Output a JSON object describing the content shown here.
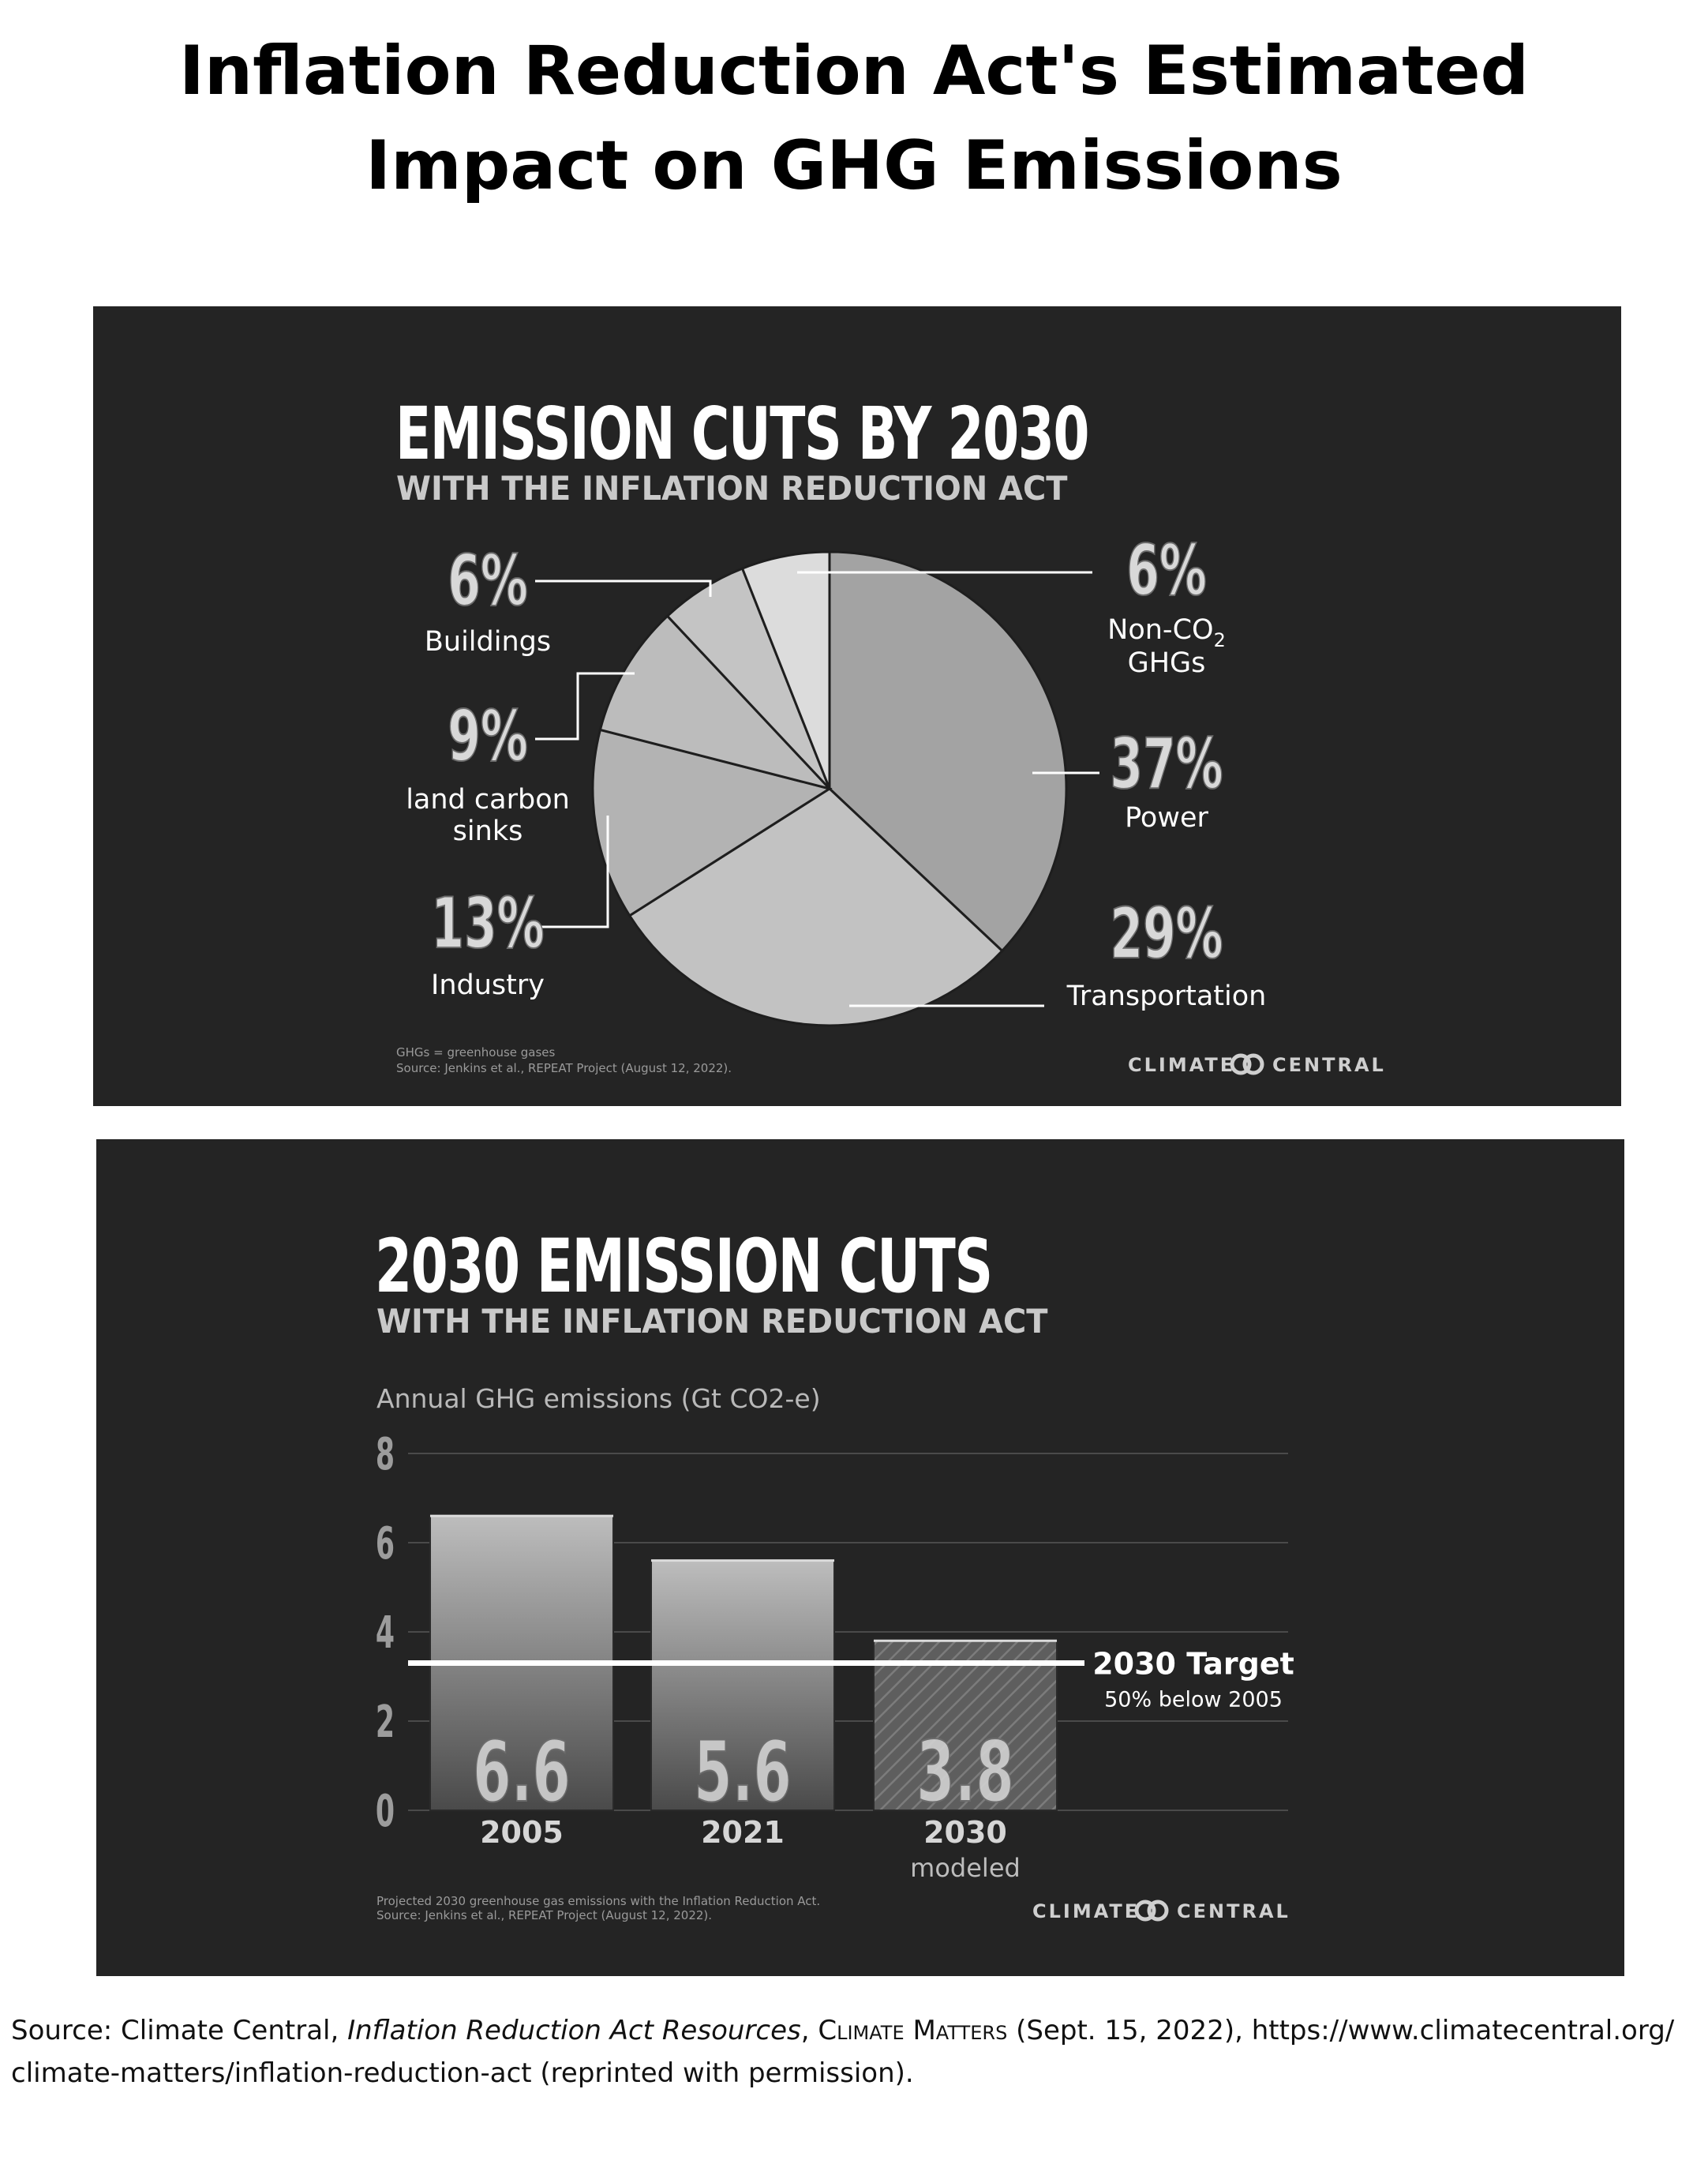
{
  "title_line1": "Inflation Reduction Act's Estimated",
  "title_line2": "Impact on GHG Emissions",
  "pie_panel": {
    "title": "EMISSION CUTS BY 2030",
    "subtitle": "WITH THE INFLATION REDUCTION ACT",
    "footnote1": "GHGs = greenhouse gases",
    "footnote2": "Source: Jenkins et al., REPEAT Project (August 12, 2022).",
    "logo_left": "CLIMATE",
    "logo_right": "CENTRAL"
  },
  "bar_panel": {
    "title": "2030 EMISSION CUTS",
    "subtitle": "WITH THE INFLATION REDUCTION ACT",
    "footnote1": "Projected 2030 greenhouse gas emissions with the Inflation Reduction Act.",
    "footnote2": "Source: Jenkins et al., REPEAT Project (August 12, 2022).",
    "logo_left": "CLIMATE",
    "logo_right": "CENTRAL"
  },
  "chart_data": [
    {
      "type": "pie",
      "title": "EMISSION CUTS BY 2030",
      "subtitle": "WITH THE INFLATION REDUCTION ACT",
      "slices": [
        {
          "name": "Power",
          "value": 37,
          "label": "37%",
          "color": "#a3a3a3"
        },
        {
          "name": "Transportation",
          "value": 29,
          "label": "29%",
          "color": "#c2c2c2"
        },
        {
          "name": "Industry",
          "value": 13,
          "label": "13%",
          "color": "#b3b3b3"
        },
        {
          "name": "land carbon sinks",
          "value": 9,
          "label": "9%",
          "color": "#bcbcbc"
        },
        {
          "name": "Buildings",
          "value": 6,
          "label": "6%",
          "color": "#c4c4c4"
        },
        {
          "name": "Non-CO2 GHGs",
          "value": 6,
          "label": "6%",
          "color": "#dcdcdc"
        }
      ]
    },
    {
      "type": "bar",
      "title": "2030 EMISSION CUTS",
      "subtitle": "WITH THE INFLATION REDUCTION ACT",
      "ylabel": "Annual GHG emissions (Gt CO2-e)",
      "ylim": [
        0,
        8
      ],
      "yticks": [
        "0",
        "2",
        "4",
        "6",
        "8"
      ],
      "categories": [
        "2005",
        "2021",
        "2030"
      ],
      "category_notes": [
        "",
        "",
        "modeled"
      ],
      "values": [
        6.6,
        5.6,
        3.8
      ],
      "value_labels": [
        "6.6",
        "5.6",
        "3.8"
      ],
      "grid": true,
      "target": {
        "value": 3.3,
        "label": "2030 Target",
        "note": "50% below 2005"
      }
    }
  ],
  "credit": {
    "prefix": "Source: Climate Central, ",
    "italic": "Inflation Reduction Act Resources",
    "sep": ", ",
    "smallcaps": "Climate Matters",
    "rest_line1": " (Sept. 15, 2022), https://www.climatecentral.org/",
    "line2": "climate-matters/inflation-reduction-act (reprinted with permission)."
  }
}
